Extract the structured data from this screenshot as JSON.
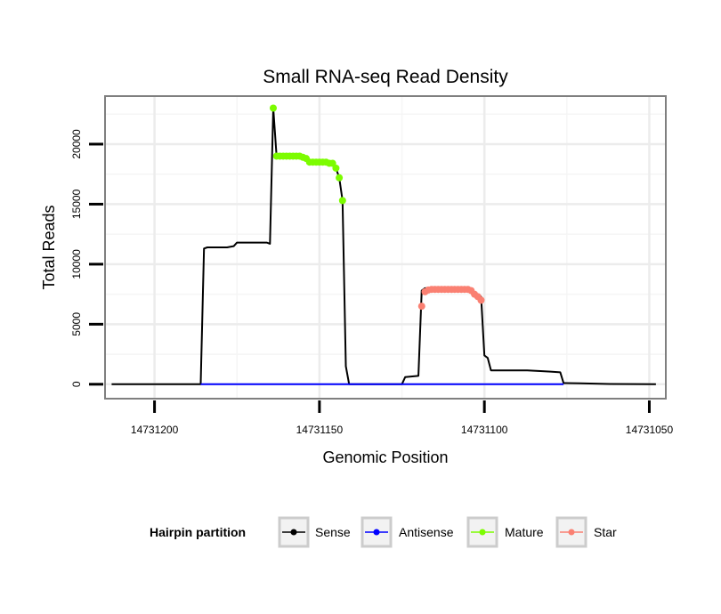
{
  "chart_data": {
    "type": "line",
    "title": "Small RNA-seq Read Density",
    "xlabel": "Genomic Position",
    "ylabel": "Total Reads",
    "x_reversed": true,
    "xlim": [
      14731215,
      14731045
    ],
    "ylim": [
      -1200,
      24000
    ],
    "x_ticks": [
      14731200,
      14731150,
      14731100,
      14731050
    ],
    "x_tick_labels": [
      "14731200",
      "14731150",
      "14731100",
      "14731050"
    ],
    "y_ticks": [
      0,
      5000,
      10000,
      15000,
      20000
    ],
    "y_tick_labels": [
      "0",
      "5000",
      "10000",
      "15000",
      "20000"
    ],
    "grid": true,
    "legend": {
      "title": "Hairpin partition",
      "position": "bottom",
      "entries": [
        {
          "name": "Sense",
          "color": "#000000"
        },
        {
          "name": "Antisense",
          "color": "#0000ff"
        },
        {
          "name": "Mature",
          "color": "#7cfc00"
        },
        {
          "name": "Star",
          "color": "#fa8072"
        }
      ]
    },
    "series": [
      {
        "name": "Sense",
        "color": "#000000",
        "points": [
          [
            14731213,
            0
          ],
          [
            14731186,
            0
          ],
          [
            14731185,
            11300
          ],
          [
            14731184,
            11400
          ],
          [
            14731178,
            11400
          ],
          [
            14731176,
            11500
          ],
          [
            14731175,
            11800
          ],
          [
            14731166,
            11800
          ],
          [
            14731165,
            11700
          ],
          [
            14731164,
            23000
          ],
          [
            14731163,
            19000
          ],
          [
            14731154,
            19000
          ],
          [
            14731153,
            18500
          ],
          [
            14731146,
            18500
          ],
          [
            14731145,
            18000
          ],
          [
            14731144,
            17200
          ],
          [
            14731143,
            15300
          ],
          [
            14731142,
            1500
          ],
          [
            14731141,
            0
          ],
          [
            14731125,
            0
          ],
          [
            14731124,
            600
          ],
          [
            14731120,
            700
          ],
          [
            14731119,
            7800
          ],
          [
            14731118,
            8000
          ],
          [
            14731104,
            8000
          ],
          [
            14731103,
            7600
          ],
          [
            14731101,
            7300
          ],
          [
            14731100,
            2400
          ],
          [
            14731099,
            2200
          ],
          [
            14731098,
            1150
          ],
          [
            14731087,
            1150
          ],
          [
            14731083,
            1100
          ],
          [
            14731080,
            1050
          ],
          [
            14731077,
            1000
          ],
          [
            14731076,
            100
          ],
          [
            14731071,
            80
          ],
          [
            14731062,
            20
          ],
          [
            14731048,
            0
          ]
        ]
      },
      {
        "name": "Antisense",
        "color": "#0000ff",
        "points": [
          [
            14731186,
            0
          ],
          [
            14731076,
            0
          ]
        ]
      },
      {
        "name": "Mature",
        "color": "#7cfc00",
        "points": [
          [
            14731164,
            23000
          ],
          [
            14731163,
            19000
          ],
          [
            14731162,
            19000
          ],
          [
            14731161,
            19000
          ],
          [
            14731160,
            19000
          ],
          [
            14731159,
            19000
          ],
          [
            14731158,
            19000
          ],
          [
            14731157,
            19000
          ],
          [
            14731156,
            19000
          ],
          [
            14731155,
            18900
          ],
          [
            14731154,
            18800
          ],
          [
            14731153,
            18500
          ],
          [
            14731152,
            18500
          ],
          [
            14731151,
            18500
          ],
          [
            14731150,
            18500
          ],
          [
            14731149,
            18500
          ],
          [
            14731148,
            18500
          ],
          [
            14731147,
            18400
          ],
          [
            14731146,
            18400
          ],
          [
            14731145,
            18000
          ],
          [
            14731144,
            17200
          ],
          [
            14731143,
            15300
          ]
        ]
      },
      {
        "name": "Star",
        "color": "#fa8072",
        "points": [
          [
            14731119,
            6500
          ],
          [
            14731118,
            7700
          ],
          [
            14731117,
            7850
          ],
          [
            14731116,
            7900
          ],
          [
            14731115,
            7900
          ],
          [
            14731114,
            7900
          ],
          [
            14731113,
            7900
          ],
          [
            14731112,
            7900
          ],
          [
            14731111,
            7900
          ],
          [
            14731110,
            7900
          ],
          [
            14731109,
            7900
          ],
          [
            14731108,
            7900
          ],
          [
            14731107,
            7900
          ],
          [
            14731106,
            7900
          ],
          [
            14731105,
            7900
          ],
          [
            14731104,
            7800
          ],
          [
            14731103,
            7500
          ],
          [
            14731102,
            7300
          ],
          [
            14731101,
            7000
          ]
        ]
      }
    ]
  }
}
